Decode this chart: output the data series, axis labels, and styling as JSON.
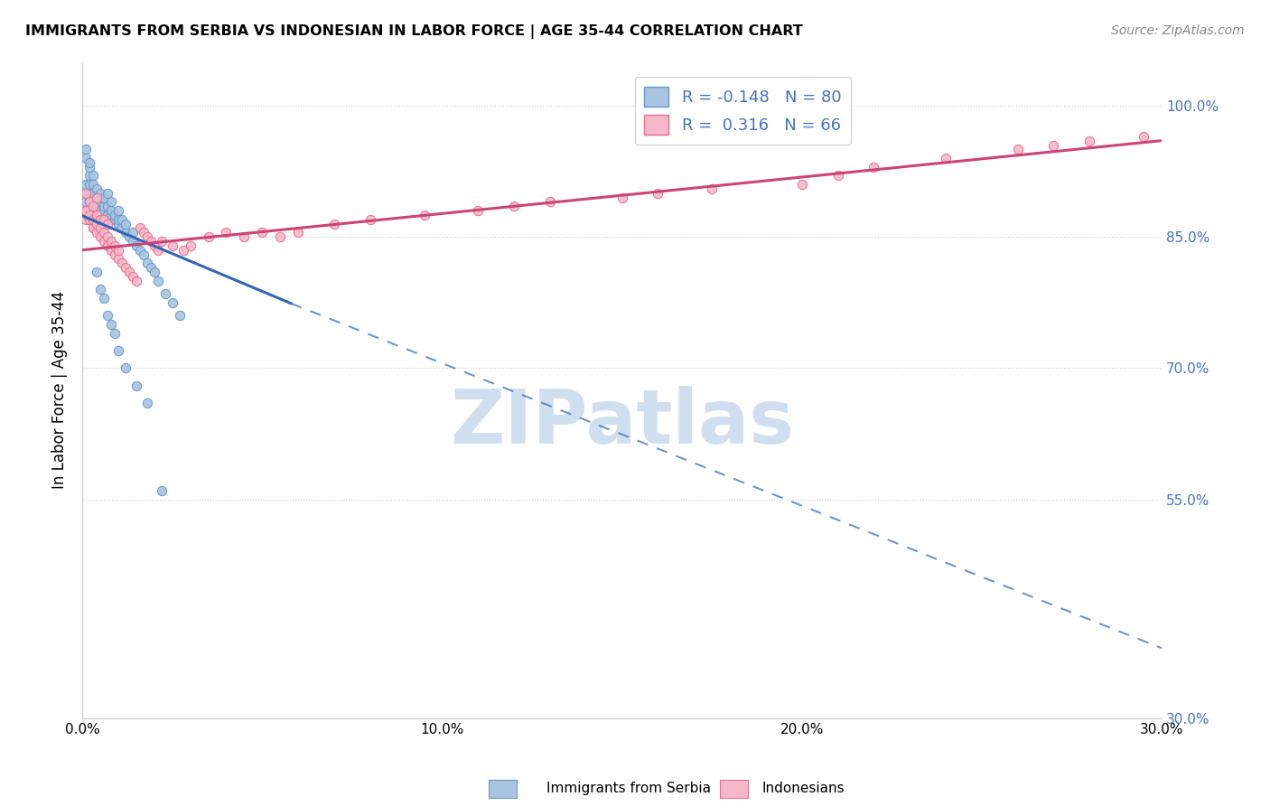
{
  "title": "IMMIGRANTS FROM SERBIA VS INDONESIAN IN LABOR FORCE | AGE 35-44 CORRELATION CHART",
  "source": "Source: ZipAtlas.com",
  "ylabel": "In Labor Force | Age 35-44",
  "xlim": [
    0.0,
    0.3
  ],
  "ylim": [
    0.3,
    1.05
  ],
  "ytick_values": [
    0.3,
    0.55,
    0.7,
    0.85,
    1.0
  ],
  "xtick_labels": [
    "0.0%",
    "",
    "10.0%",
    "",
    "20.0%",
    "",
    "30.0%"
  ],
  "xtick_values": [
    0.0,
    0.05,
    0.1,
    0.15,
    0.2,
    0.25,
    0.3
  ],
  "right_ytick_labels": [
    "100.0%",
    "85.0%",
    "70.0%",
    "55.0%",
    "30.0%"
  ],
  "right_ytick_values": [
    1.0,
    0.85,
    0.7,
    0.55,
    0.3
  ],
  "serbia_color": "#a8c4e0",
  "serbia_edge_color": "#6699cc",
  "indonesia_color": "#f4b8c8",
  "indonesia_edge_color": "#e87090",
  "serbia_R": -0.148,
  "serbia_N": 80,
  "indonesia_R": 0.316,
  "indonesia_N": 66,
  "watermark": "ZIPatlas",
  "watermark_color": "#d0dff0",
  "legend_serbia_label": "Immigrants from Serbia",
  "legend_indonesia_label": "Indonesians",
  "serbia_line_color": "#3366bb",
  "indonesia_line_color": "#cc4477",
  "serbia_trendline": [
    0.0,
    0.058,
    0.874,
    0.774
  ],
  "serbia_dash_trendline": [
    0.058,
    0.3,
    0.774,
    0.38
  ],
  "indonesia_trendline": [
    0.0,
    0.3,
    0.835,
    0.96
  ],
  "serbia_scatter_x": [
    0.001,
    0.001,
    0.001,
    0.001,
    0.002,
    0.002,
    0.002,
    0.002,
    0.002,
    0.002,
    0.002,
    0.002,
    0.003,
    0.003,
    0.003,
    0.003,
    0.003,
    0.003,
    0.003,
    0.004,
    0.004,
    0.004,
    0.004,
    0.004,
    0.005,
    0.005,
    0.005,
    0.005,
    0.005,
    0.006,
    0.006,
    0.006,
    0.006,
    0.007,
    0.007,
    0.007,
    0.007,
    0.008,
    0.008,
    0.008,
    0.008,
    0.009,
    0.009,
    0.01,
    0.01,
    0.01,
    0.011,
    0.011,
    0.012,
    0.012,
    0.013,
    0.014,
    0.014,
    0.015,
    0.016,
    0.017,
    0.018,
    0.019,
    0.02,
    0.021,
    0.023,
    0.025,
    0.027,
    0.001,
    0.001,
    0.002,
    0.002,
    0.003,
    0.003,
    0.004,
    0.005,
    0.006,
    0.007,
    0.008,
    0.009,
    0.01,
    0.012,
    0.015,
    0.018,
    0.022
  ],
  "serbia_scatter_y": [
    0.88,
    0.89,
    0.9,
    0.91,
    0.87,
    0.875,
    0.88,
    0.89,
    0.895,
    0.9,
    0.91,
    0.92,
    0.87,
    0.88,
    0.885,
    0.89,
    0.9,
    0.91,
    0.92,
    0.87,
    0.875,
    0.885,
    0.895,
    0.905,
    0.87,
    0.875,
    0.88,
    0.89,
    0.9,
    0.87,
    0.88,
    0.885,
    0.895,
    0.87,
    0.875,
    0.885,
    0.9,
    0.87,
    0.875,
    0.88,
    0.89,
    0.87,
    0.875,
    0.865,
    0.87,
    0.88,
    0.86,
    0.87,
    0.855,
    0.865,
    0.85,
    0.845,
    0.855,
    0.84,
    0.835,
    0.83,
    0.82,
    0.815,
    0.81,
    0.8,
    0.785,
    0.775,
    0.76,
    0.94,
    0.95,
    0.93,
    0.935,
    0.86,
    0.87,
    0.81,
    0.79,
    0.78,
    0.76,
    0.75,
    0.74,
    0.72,
    0.7,
    0.68,
    0.66,
    0.56
  ],
  "indonesia_scatter_x": [
    0.001,
    0.001,
    0.001,
    0.002,
    0.002,
    0.002,
    0.003,
    0.003,
    0.003,
    0.004,
    0.004,
    0.004,
    0.004,
    0.005,
    0.005,
    0.005,
    0.006,
    0.006,
    0.006,
    0.007,
    0.007,
    0.007,
    0.008,
    0.008,
    0.009,
    0.009,
    0.01,
    0.01,
    0.011,
    0.012,
    0.013,
    0.014,
    0.015,
    0.016,
    0.017,
    0.018,
    0.019,
    0.02,
    0.021,
    0.022,
    0.025,
    0.028,
    0.03,
    0.035,
    0.04,
    0.045,
    0.05,
    0.055,
    0.06,
    0.07,
    0.08,
    0.095,
    0.11,
    0.12,
    0.13,
    0.15,
    0.16,
    0.175,
    0.2,
    0.21,
    0.22,
    0.24,
    0.26,
    0.27,
    0.28,
    0.295
  ],
  "indonesia_scatter_y": [
    0.87,
    0.88,
    0.9,
    0.87,
    0.875,
    0.89,
    0.86,
    0.87,
    0.885,
    0.855,
    0.865,
    0.875,
    0.895,
    0.85,
    0.86,
    0.87,
    0.845,
    0.855,
    0.87,
    0.84,
    0.85,
    0.865,
    0.835,
    0.845,
    0.83,
    0.84,
    0.825,
    0.835,
    0.82,
    0.815,
    0.81,
    0.805,
    0.8,
    0.86,
    0.855,
    0.85,
    0.845,
    0.84,
    0.835,
    0.845,
    0.84,
    0.835,
    0.84,
    0.85,
    0.855,
    0.85,
    0.855,
    0.85,
    0.855,
    0.865,
    0.87,
    0.875,
    0.88,
    0.885,
    0.89,
    0.895,
    0.9,
    0.905,
    0.91,
    0.92,
    0.93,
    0.94,
    0.95,
    0.955,
    0.96,
    0.965
  ]
}
